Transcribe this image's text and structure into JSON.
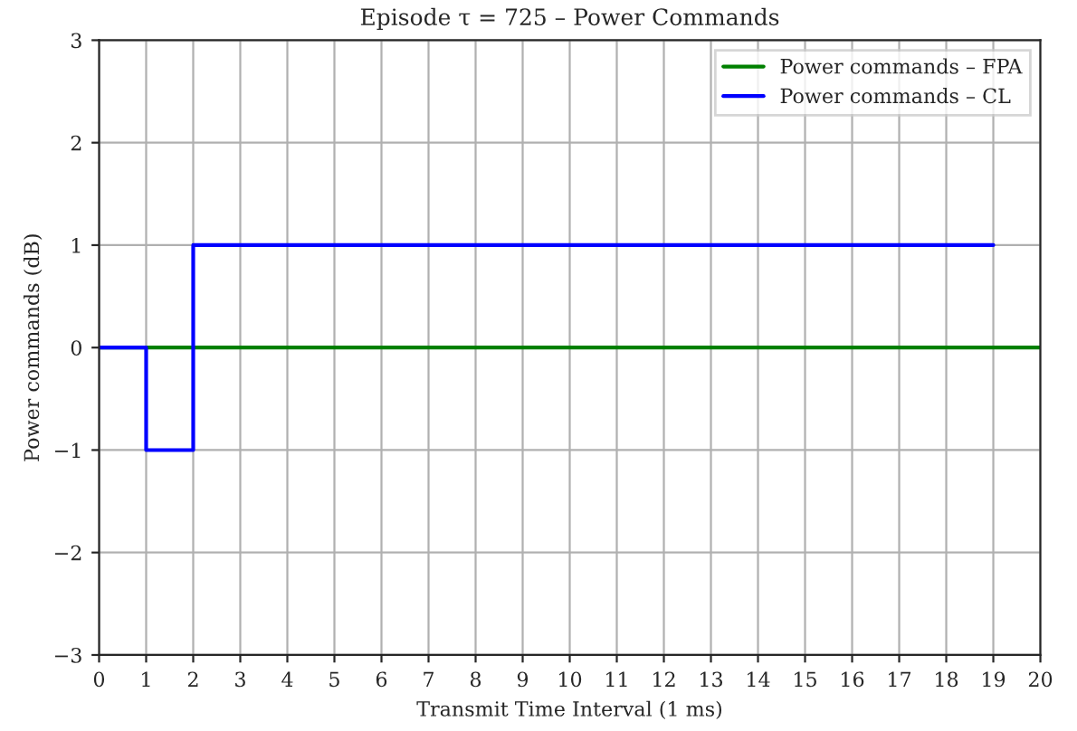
{
  "chart_data": {
    "type": "step",
    "title": "Episode τ = 725 – Power Commands",
    "xlabel": "Transmit Time Interval (1 ms)",
    "ylabel": "Power commands (dB)",
    "series": [
      {
        "name": "Power commands – FPA",
        "color": "#008000",
        "x": [
          0,
          1,
          2,
          3,
          4,
          5,
          6,
          7,
          8,
          9,
          10,
          11,
          12,
          13,
          14,
          15,
          16,
          17,
          18,
          19,
          20
        ],
        "values": [
          0,
          0,
          0,
          0,
          0,
          0,
          0,
          0,
          0,
          0,
          0,
          0,
          0,
          0,
          0,
          0,
          0,
          0,
          0,
          0,
          0
        ]
      },
      {
        "name": "Power commands – CL",
        "color": "#0000ff",
        "x": [
          0,
          1,
          2,
          3,
          4,
          5,
          6,
          7,
          8,
          9,
          10,
          11,
          12,
          13,
          14,
          15,
          16,
          17,
          18,
          19
        ],
        "values": [
          0,
          -1,
          1,
          1,
          1,
          1,
          1,
          1,
          1,
          1,
          1,
          1,
          1,
          1,
          1,
          1,
          1,
          1,
          1,
          1
        ]
      }
    ],
    "xlim": [
      0,
      20
    ],
    "xticks": [
      0,
      1,
      2,
      3,
      4,
      5,
      6,
      7,
      8,
      9,
      10,
      11,
      12,
      13,
      14,
      15,
      16,
      17,
      18,
      19,
      20
    ],
    "ylim": [
      -3,
      3
    ],
    "yticks": [
      {
        "value": -3,
        "label": "−3"
      },
      {
        "value": -2,
        "label": "−2"
      },
      {
        "value": -1,
        "label": "−1"
      },
      0,
      1,
      2,
      3
    ],
    "grid": true,
    "legend": "top right",
    "line_style": "solid"
  }
}
